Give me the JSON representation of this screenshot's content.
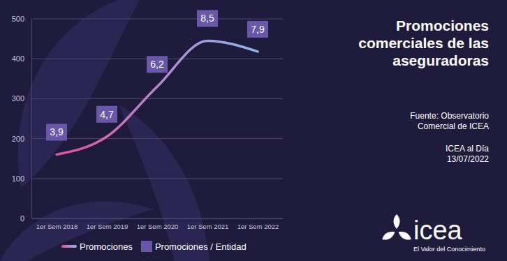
{
  "chart_data": {
    "type": "line",
    "title": "Promociones comerciales de las aseguradoras",
    "source": [
      "Fuente: Observatorio",
      "Comercial de ICEA"
    ],
    "date_note": [
      "ICEA al Día",
      "13/07/2022"
    ],
    "logo": {
      "text": "icea",
      "tagline": "El Valor del Conocimiento"
    },
    "categories": [
      "1er Sem 2018",
      "1er Sem 2019",
      "1er Sem 2020",
      "1er Sem 2021",
      "1er Sem 2022"
    ],
    "series": [
      {
        "name": "Promociones",
        "type": "line",
        "colors": [
          "#e0509a",
          "#cf69b1",
          "#b387cc",
          "#a19fe0",
          "#8cb6e8"
        ],
        "values": [
          160,
          205,
          330,
          445,
          418
        ]
      },
      {
        "name": "Promociones / Entidad",
        "type": "label",
        "color": "#6b57aa",
        "values": [
          3.9,
          4.7,
          6.2,
          8.5,
          7.9
        ],
        "value_labels": [
          "3,9",
          "4,7",
          "6,2",
          "8,5",
          "7,9"
        ]
      }
    ],
    "ylim": [
      0,
      500
    ],
    "yticks": [
      0,
      100,
      200,
      300,
      400,
      500
    ],
    "grid": true,
    "legend": "bottom"
  }
}
